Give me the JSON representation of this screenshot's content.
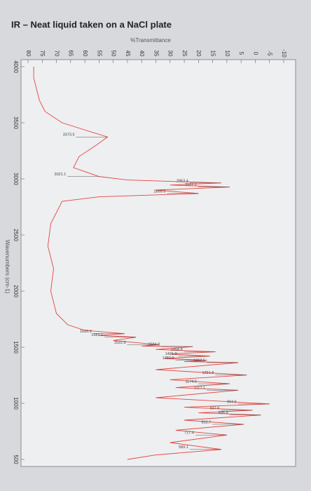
{
  "chart_data": {
    "type": "line",
    "orientation": "rotated",
    "title": "IR – Neat liquid taken on a NaCl plate",
    "ylabel": "%Transmittance",
    "xlabel": "Wavenumbers (cm-1)",
    "xlim": [
      4000,
      500
    ],
    "xticks": [
      4000,
      3500,
      3000,
      2500,
      2000,
      1500,
      1000,
      500
    ],
    "ylim": [
      80,
      -10
    ],
    "yticks": [
      80,
      75,
      70,
      65,
      60,
      55,
      50,
      45,
      40,
      35,
      30,
      25,
      20,
      15,
      10,
      5,
      0,
      -5,
      -10
    ],
    "series": [
      {
        "name": "%Transmittance",
        "color": "#e2463f",
        "x": [
          4000,
          3900,
          3800,
          3700,
          3600,
          3500,
          3420,
          3373.5,
          3300,
          3200,
          3100,
          3021.1,
          2990,
          2963.4,
          2945,
          2927.1,
          2900,
          2869.5,
          2840,
          2800,
          2600,
          2400,
          2200,
          2000,
          1800,
          1700,
          1650,
          1620.9,
          1605,
          1589.1,
          1560,
          1522.5,
          1510,
          1504.8,
          1480,
          1458.8,
          1440,
          1421.0,
          1400,
          1382.9,
          1372,
          1362.5,
          1300,
          1251.9,
          1210,
          1174.5,
          1140,
          1117.1,
          1050,
          994.6,
          965,
          937.6,
          915,
          895.9,
          850,
          812.7,
          760,
          717.4,
          650,
          589.1,
          540,
          500
        ],
        "values": [
          78,
          78,
          77,
          76,
          74,
          68,
          58,
          52,
          56,
          62,
          64,
          55,
          45,
          12,
          30,
          9,
          35,
          20,
          55,
          68,
          72,
          73,
          71,
          72,
          70,
          66,
          60,
          46,
          55,
          42,
          50,
          34,
          40,
          22,
          35,
          14,
          30,
          16,
          32,
          17,
          25,
          6,
          35,
          3,
          30,
          9,
          28,
          6,
          35,
          -5,
          25,
          1,
          20,
          -2,
          25,
          4,
          28,
          10,
          30,
          12,
          35,
          45
        ]
      }
    ],
    "annotations": [
      {
        "x": 3373.5,
        "text": "3373.5"
      },
      {
        "x": 3021.1,
        "text": "3021.1"
      },
      {
        "x": 2963.4,
        "text": "2963.4"
      },
      {
        "x": 2927.1,
        "text": "2927.1"
      },
      {
        "x": 2869.5,
        "text": "2869.5"
      },
      {
        "x": 1620.9,
        "text": "1620.9"
      },
      {
        "x": 1589.1,
        "text": "1589.1"
      },
      {
        "x": 1522.5,
        "text": "1522.5"
      },
      {
        "x": 1504.8,
        "text": "1504.8"
      },
      {
        "x": 1458.8,
        "text": "1458.8"
      },
      {
        "x": 1421.0,
        "text": "1421.0"
      },
      {
        "x": 1382.9,
        "text": "1382.9"
      },
      {
        "x": 1362.5,
        "text": "1362.5"
      },
      {
        "x": 1251.9,
        "text": "1251.9"
      },
      {
        "x": 1174.5,
        "text": "1174.5"
      },
      {
        "x": 1117.1,
        "text": "1117.1"
      },
      {
        "x": 994.6,
        "text": "994.6"
      },
      {
        "x": 937.6,
        "text": "937.6"
      },
      {
        "x": 895.9,
        "text": "895.9"
      },
      {
        "x": 812.7,
        "text": "812.7"
      },
      {
        "x": 717.4,
        "text": "717.4"
      },
      {
        "x": 589.1,
        "text": "589.1"
      }
    ]
  }
}
